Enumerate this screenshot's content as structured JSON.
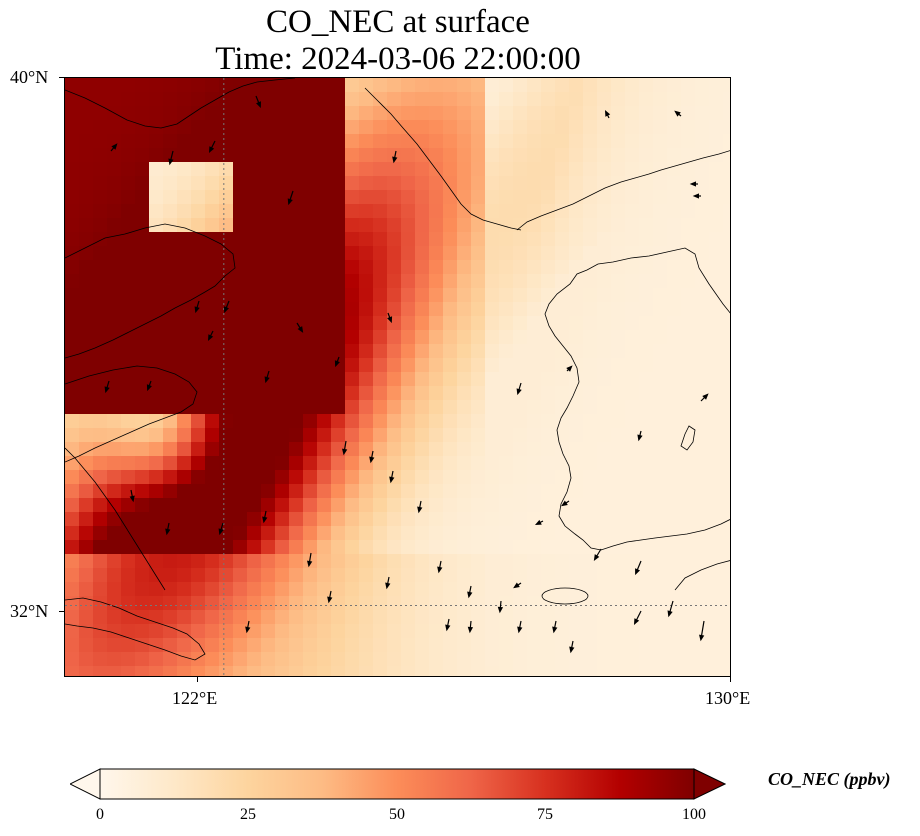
{
  "title": {
    "line1": "CO_NEC at surface",
    "line2": "Time: 2024-03-06 22:00:00"
  },
  "map": {
    "extent": {
      "lon_min": 119.5,
      "lon_max": 130.0,
      "lat_min": 30.9,
      "lat_max": 40.0
    },
    "gridlines": [
      {
        "axis": "lon",
        "value": 122,
        "label": "122°E"
      },
      {
        "axis": "lat",
        "value": 32,
        "label": "32°N"
      }
    ],
    "x_ticks": [
      {
        "value": 122,
        "label": "122°E"
      },
      {
        "value": 130,
        "label": "130°E"
      }
    ],
    "y_ticks": [
      {
        "value": 40,
        "label": "40°N"
      },
      {
        "value": 32,
        "label": "32°N"
      }
    ],
    "field_name": "CO_NEC",
    "colors": {
      "coast": "#000000",
      "gridline": "#777777"
    }
  },
  "colorbar": {
    "label": "CO_NEC (ppbv)",
    "vmin": 0,
    "vmax": 100,
    "extend": "both",
    "ticks": [
      "0",
      "25",
      "50",
      "75",
      "100"
    ],
    "colormap": [
      "#fff7ec",
      "#fee8c8",
      "#fdd49e",
      "#fdbb84",
      "#fc8d59",
      "#ef6548",
      "#d7301f",
      "#b30000",
      "#7f0000"
    ]
  }
}
